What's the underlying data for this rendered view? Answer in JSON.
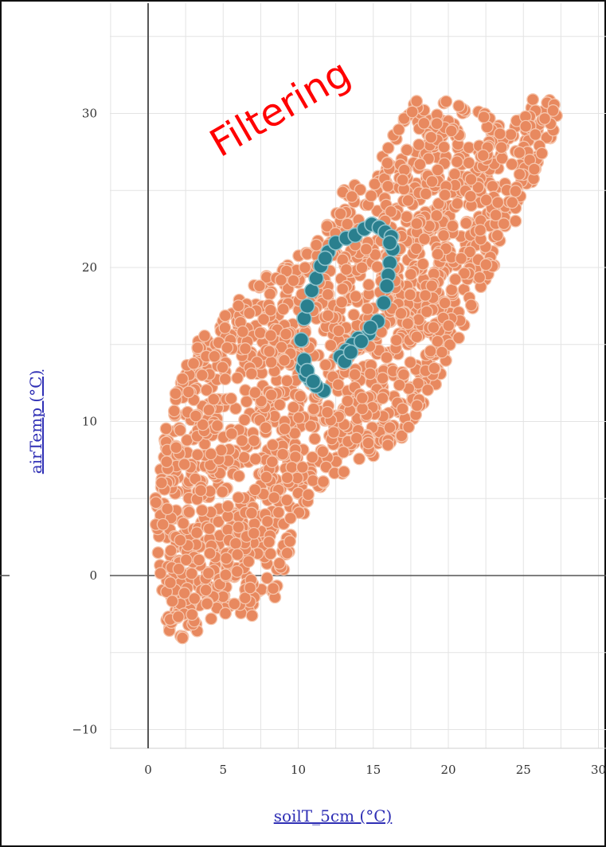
{
  "annotation": "Filtering",
  "colors": {
    "base": "#e8895f",
    "base_stroke": "#f6c6ad",
    "filtered": "#2a7f8e",
    "filtered_stroke": "#8fc3cc",
    "axis_label": "#2f2fb5",
    "annotation": "#ff0000",
    "grid": "#e3e3e3",
    "zero_line": "#555555"
  },
  "chart_data": {
    "type": "scatter",
    "xlabel": "soilT_5cm (°C)",
    "ylabel": "airTemp (°C)",
    "xlim": [
      -3,
      31
    ],
    "ylim": [
      -13,
      37
    ],
    "xticks": [
      0,
      5,
      10,
      15,
      20,
      25,
      30
    ],
    "yticks": [
      -10,
      0,
      10,
      20,
      30
    ],
    "xtick_labels": [
      "0",
      "5",
      "10",
      "15",
      "20",
      "25",
      "30"
    ],
    "ytick_labels": [
      "−10",
      "0",
      "10",
      "20",
      "30"
    ],
    "grid": true,
    "series": [
      {
        "role": "all observations",
        "region_outline": [
          [
            0.3,
            4
          ],
          [
            0.8,
            0
          ],
          [
            1.2,
            -3
          ],
          [
            1.8,
            -5.5
          ],
          [
            3,
            -4.5
          ],
          [
            4,
            -3
          ],
          [
            5.5,
            -3
          ],
          [
            7,
            -3
          ],
          [
            8.5,
            -1.5
          ],
          [
            10,
            3
          ],
          [
            12,
            6
          ],
          [
            14,
            7
          ],
          [
            17,
            9
          ],
          [
            19,
            12
          ],
          [
            21,
            16
          ],
          [
            23,
            20
          ],
          [
            25,
            24
          ],
          [
            26.5,
            27.5
          ],
          [
            27.5,
            30
          ],
          [
            27,
            31
          ],
          [
            25.5,
            31
          ],
          [
            24,
            29
          ],
          [
            22.5,
            30
          ],
          [
            20.5,
            31
          ],
          [
            18,
            31
          ],
          [
            16.5,
            29
          ],
          [
            15,
            26
          ],
          [
            13,
            25
          ],
          [
            11.5,
            22
          ],
          [
            9,
            20
          ],
          [
            7,
            19
          ],
          [
            5,
            17
          ],
          [
            3.5,
            15.5
          ],
          [
            2,
            13
          ],
          [
            1,
            9
          ],
          [
            0.3,
            6
          ]
        ],
        "approx_count": 1800
      },
      {
        "role": "filtered selection",
        "points": [
          [
            11.7,
            12
          ],
          [
            11.2,
            12.3
          ],
          [
            10.8,
            12.7
          ],
          [
            10.5,
            13
          ],
          [
            10.3,
            13.5
          ],
          [
            10.4,
            14
          ],
          [
            10.2,
            15.3
          ],
          [
            10.4,
            16.7
          ],
          [
            10.6,
            17.5
          ],
          [
            10.9,
            18.5
          ],
          [
            11.2,
            19.3
          ],
          [
            11.5,
            20.1
          ],
          [
            12,
            21
          ],
          [
            12.5,
            21.6
          ],
          [
            13.2,
            21.9
          ],
          [
            13.8,
            22.1
          ],
          [
            14.4,
            22.5
          ],
          [
            14.9,
            22.8
          ],
          [
            15.4,
            22.6
          ],
          [
            15.8,
            22.3
          ],
          [
            16.2,
            22
          ],
          [
            16.3,
            21.2
          ],
          [
            16.1,
            20.3
          ],
          [
            16,
            19.5
          ],
          [
            15.9,
            18.8
          ],
          [
            15.7,
            17.7
          ],
          [
            15.3,
            16.5
          ],
          [
            14.7,
            15.7
          ],
          [
            14,
            15.4
          ],
          [
            13.6,
            15
          ],
          [
            13.2,
            14.6
          ],
          [
            12.8,
            14.2
          ],
          [
            13.1,
            13.9
          ],
          [
            13.5,
            14.5
          ],
          [
            14.2,
            15.2
          ],
          [
            10.6,
            13.3
          ],
          [
            11,
            12.6
          ],
          [
            14.8,
            16.1
          ],
          [
            16.1,
            21.6
          ],
          [
            11.8,
            20.6
          ]
        ]
      }
    ]
  }
}
